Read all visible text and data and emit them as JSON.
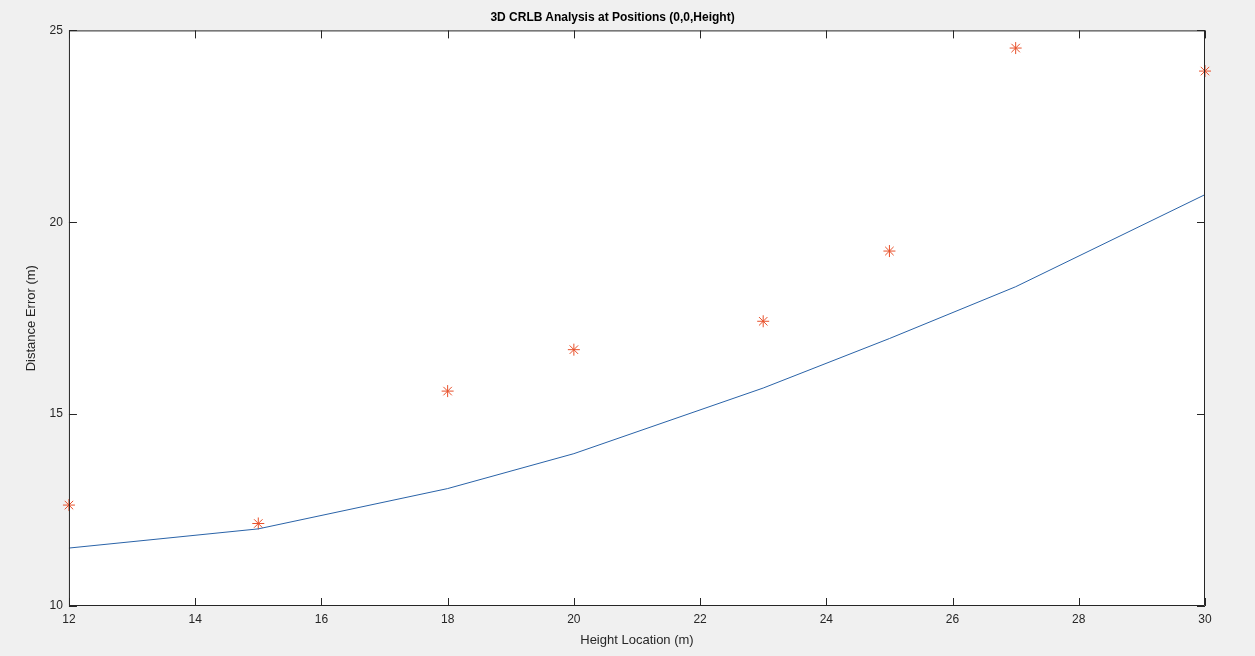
{
  "chart_data": {
    "type": "line",
    "title": "3D CRLB Analysis at Positions (0,0,Height)",
    "xlabel": "Height Location (m)",
    "ylabel": "Distance Error (m)",
    "x": [
      12,
      15,
      18,
      20,
      23,
      25,
      27,
      30
    ],
    "series": [
      {
        "color": "#2a63a8",
        "values": [
          11.51,
          12.01,
          13.06,
          13.97,
          15.68,
          16.97,
          18.32,
          20.72
        ],
        "marker": "none"
      },
      {
        "type": "scatter",
        "color": "#e8502a",
        "values": [
          12.63,
          12.15,
          15.6,
          16.68,
          17.42,
          19.25,
          24.54,
          23.94
        ],
        "marker": "cross"
      }
    ],
    "xlim": [
      12,
      30
    ],
    "xticks": [
      12,
      14,
      16,
      18,
      20,
      22,
      24,
      26,
      28,
      30
    ],
    "ylim": [
      10,
      25
    ],
    "yticks": [
      10,
      15,
      20,
      25
    ],
    "grid": false,
    "legend": false
  }
}
